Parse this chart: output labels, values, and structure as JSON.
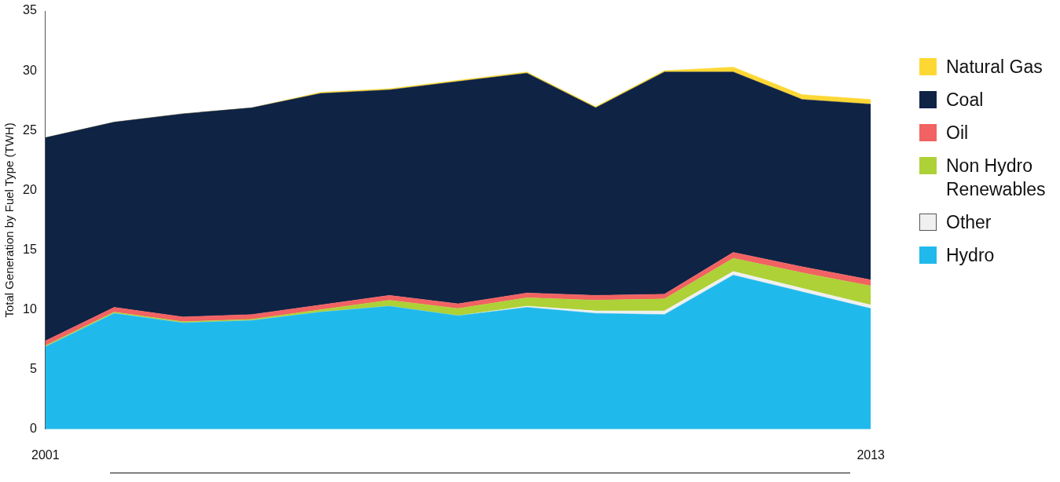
{
  "chart_data": {
    "type": "area",
    "stacked": true,
    "ylabel": "Total Generation by Fuel Type (TWH)",
    "categories": [
      "2001",
      null,
      null,
      null,
      null,
      null,
      null,
      null,
      null,
      null,
      null,
      null,
      "2013"
    ],
    "ylim": [
      0,
      35
    ],
    "yticks": [
      0,
      5,
      10,
      15,
      20,
      25,
      30,
      35
    ],
    "grid": false,
    "legend": "right",
    "marker": "none",
    "series": [
      {
        "name": "Hydro",
        "color": "#20b9ec",
        "values": [
          6.9,
          9.7,
          8.9,
          9.1,
          9.8,
          10.3,
          9.5,
          10.2,
          9.7,
          9.6,
          12.9,
          11.5,
          10.1
        ]
      },
      {
        "name": "Other",
        "color": "#f0f0f0",
        "values": [
          0,
          0,
          0,
          0,
          0,
          0,
          0,
          0.1,
          0.2,
          0.3,
          0.3,
          0.3,
          0.3
        ]
      },
      {
        "name": "Non Hydro Renewables",
        "color": "#add136",
        "values": [
          0.1,
          0.1,
          0.1,
          0.1,
          0.2,
          0.5,
          0.6,
          0.7,
          0.9,
          1.0,
          1.1,
          1.3,
          1.6
        ]
      },
      {
        "name": "Oil",
        "color": "#f26262",
        "values": [
          0.4,
          0.4,
          0.4,
          0.4,
          0.4,
          0.4,
          0.4,
          0.4,
          0.4,
          0.4,
          0.5,
          0.5,
          0.5
        ]
      },
      {
        "name": "Coal",
        "color": "#0f2345",
        "values": [
          17.0,
          15.5,
          17.0,
          17.3,
          17.7,
          17.2,
          18.6,
          18.4,
          15.7,
          18.6,
          15.1,
          14.0,
          14.7
        ]
      },
      {
        "name": "Natural Gas",
        "color": "#fdd835",
        "values": [
          0,
          0,
          0,
          0,
          0.1,
          0.1,
          0.1,
          0.1,
          0.1,
          0.1,
          0.4,
          0.4,
          0.4
        ]
      }
    ]
  }
}
